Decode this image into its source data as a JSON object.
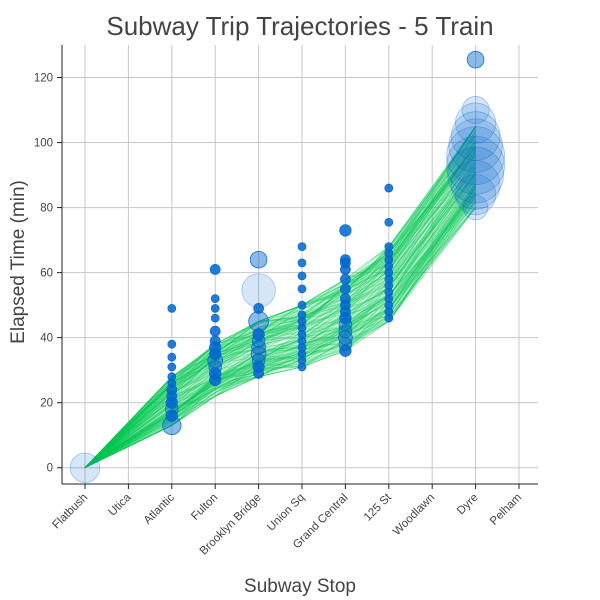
{
  "chart_data": {
    "type": "scatter",
    "title": "Subway Trip Trajectories - 5 Train",
    "xlabel": "Subway Stop",
    "ylabel": "Elapsed Time (min)",
    "categories": [
      "Flatbush",
      "Utica",
      "Atlantic",
      "Fulton",
      "Brooklyn Bridge",
      "Union Sq",
      "Grand Central",
      "125 St",
      "Woodlawn",
      "Dyre",
      "Pelham"
    ],
    "ylim": [
      -5,
      130
    ],
    "yticks": [
      0,
      20,
      40,
      60,
      80,
      100,
      120
    ],
    "grid": true,
    "legend": "none",
    "colors": {
      "trajectory_line": "#00c853",
      "point": "#0066cc",
      "text": "#444444",
      "grid": "#c8c8c8"
    },
    "trajectory_series": {
      "description_count": 260,
      "typical_times_by_stop": {
        "Flatbush": 0,
        "Atlantic": [
          13,
          28
        ],
        "Fulton": [
          22,
          38
        ],
        "Brooklyn Bridge": [
          28,
          45
        ],
        "Union Sq": [
          31,
          50
        ],
        "Grand Central": [
          36,
          58
        ],
        "125 St": [
          45,
          68
        ],
        "Dyre": [
          80,
          105
        ]
      }
    },
    "points": [
      {
        "stop": "Flatbush",
        "y": 0,
        "count": 30
      },
      {
        "stop": "Atlantic",
        "y": 13,
        "count": 10
      },
      {
        "stop": "Atlantic",
        "y": 16,
        "count": 3
      },
      {
        "stop": "Atlantic",
        "y": 18,
        "count": 4
      },
      {
        "stop": "Atlantic",
        "y": 20,
        "count": 3
      },
      {
        "stop": "Atlantic",
        "y": 22,
        "count": 2
      },
      {
        "stop": "Atlantic",
        "y": 24,
        "count": 2
      },
      {
        "stop": "Atlantic",
        "y": 26,
        "count": 1
      },
      {
        "stop": "Atlantic",
        "y": 28,
        "count": 1
      },
      {
        "stop": "Atlantic",
        "y": 31,
        "count": 1
      },
      {
        "stop": "Atlantic",
        "y": 34,
        "count": 1
      },
      {
        "stop": "Atlantic",
        "y": 38,
        "count": 1
      },
      {
        "stop": "Atlantic",
        "y": 49,
        "count": 1
      },
      {
        "stop": "Fulton",
        "y": 27,
        "count": 3
      },
      {
        "stop": "Fulton",
        "y": 29,
        "count": 3
      },
      {
        "stop": "Fulton",
        "y": 31,
        "count": 4
      },
      {
        "stop": "Fulton",
        "y": 33,
        "count": 6
      },
      {
        "stop": "Fulton",
        "y": 35,
        "count": 3
      },
      {
        "stop": "Fulton",
        "y": 37,
        "count": 3
      },
      {
        "stop": "Fulton",
        "y": 39,
        "count": 2
      },
      {
        "stop": "Fulton",
        "y": 42,
        "count": 2
      },
      {
        "stop": "Fulton",
        "y": 46,
        "count": 1
      },
      {
        "stop": "Fulton",
        "y": 49,
        "count": 1
      },
      {
        "stop": "Fulton",
        "y": 52,
        "count": 1
      },
      {
        "stop": "Fulton",
        "y": 61,
        "count": 2
      },
      {
        "stop": "Brooklyn Bridge",
        "y": 29,
        "count": 2
      },
      {
        "stop": "Brooklyn Bridge",
        "y": 31,
        "count": 3
      },
      {
        "stop": "Brooklyn Bridge",
        "y": 33,
        "count": 4
      },
      {
        "stop": "Brooklyn Bridge",
        "y": 35,
        "count": 6
      },
      {
        "stop": "Brooklyn Bridge",
        "y": 37,
        "count": 5
      },
      {
        "stop": "Brooklyn Bridge",
        "y": 39,
        "count": 4
      },
      {
        "stop": "Brooklyn Bridge",
        "y": 41,
        "count": 3
      },
      {
        "stop": "Brooklyn Bridge",
        "y": 45,
        "count": 12
      },
      {
        "stop": "Brooklyn Bridge",
        "y": 49,
        "count": 2
      },
      {
        "stop": "Brooklyn Bridge",
        "y": 54.5,
        "count": 40
      },
      {
        "stop": "Brooklyn Bridge",
        "y": 64,
        "count": 8
      },
      {
        "stop": "Union Sq",
        "y": 31,
        "count": 1
      },
      {
        "stop": "Union Sq",
        "y": 33,
        "count": 1
      },
      {
        "stop": "Union Sq",
        "y": 35,
        "count": 1
      },
      {
        "stop": "Union Sq",
        "y": 37,
        "count": 1
      },
      {
        "stop": "Union Sq",
        "y": 39,
        "count": 1
      },
      {
        "stop": "Union Sq",
        "y": 41,
        "count": 1
      },
      {
        "stop": "Union Sq",
        "y": 43,
        "count": 1
      },
      {
        "stop": "Union Sq",
        "y": 45,
        "count": 1
      },
      {
        "stop": "Union Sq",
        "y": 47,
        "count": 1
      },
      {
        "stop": "Union Sq",
        "y": 50,
        "count": 1
      },
      {
        "stop": "Union Sq",
        "y": 55,
        "count": 1
      },
      {
        "stop": "Union Sq",
        "y": 59,
        "count": 1
      },
      {
        "stop": "Union Sq",
        "y": 63,
        "count": 1
      },
      {
        "stop": "Union Sq",
        "y": 68,
        "count": 1
      },
      {
        "stop": "Grand Central",
        "y": 36,
        "count": 3
      },
      {
        "stop": "Grand Central",
        "y": 38,
        "count": 4
      },
      {
        "stop": "Grand Central",
        "y": 40,
        "count": 5
      },
      {
        "stop": "Grand Central",
        "y": 42,
        "count": 4
      },
      {
        "stop": "Grand Central",
        "y": 44,
        "count": 4
      },
      {
        "stop": "Grand Central",
        "y": 46,
        "count": 3
      },
      {
        "stop": "Grand Central",
        "y": 48,
        "count": 2
      },
      {
        "stop": "Grand Central",
        "y": 50,
        "count": 2
      },
      {
        "stop": "Grand Central",
        "y": 52,
        "count": 2
      },
      {
        "stop": "Grand Central",
        "y": 55,
        "count": 2
      },
      {
        "stop": "Grand Central",
        "y": 58,
        "count": 2
      },
      {
        "stop": "Grand Central",
        "y": 61,
        "count": 2
      },
      {
        "stop": "Grand Central",
        "y": 63,
        "count": 2
      },
      {
        "stop": "Grand Central",
        "y": 64,
        "count": 2
      },
      {
        "stop": "Grand Central",
        "y": 73,
        "count": 3
      },
      {
        "stop": "125 St",
        "y": 46,
        "count": 1
      },
      {
        "stop": "125 St",
        "y": 48,
        "count": 1
      },
      {
        "stop": "125 St",
        "y": 50,
        "count": 1
      },
      {
        "stop": "125 St",
        "y": 52,
        "count": 1
      },
      {
        "stop": "125 St",
        "y": 54,
        "count": 1
      },
      {
        "stop": "125 St",
        "y": 56,
        "count": 1
      },
      {
        "stop": "125 St",
        "y": 58,
        "count": 1
      },
      {
        "stop": "125 St",
        "y": 60,
        "count": 1
      },
      {
        "stop": "125 St",
        "y": 62,
        "count": 1
      },
      {
        "stop": "125 St",
        "y": 64,
        "count": 1
      },
      {
        "stop": "125 St",
        "y": 66,
        "count": 1
      },
      {
        "stop": "125 St",
        "y": 68,
        "count": 1
      },
      {
        "stop": "125 St",
        "y": 75.5,
        "count": 1
      },
      {
        "stop": "125 St",
        "y": 86,
        "count": 1
      },
      {
        "stop": "Dyre",
        "y": 80,
        "count": 20
      },
      {
        "stop": "Dyre",
        "y": 84,
        "count": 60
      },
      {
        "stop": "Dyre",
        "y": 87,
        "count": 90
      },
      {
        "stop": "Dyre",
        "y": 90,
        "count": 120
      },
      {
        "stop": "Dyre",
        "y": 93,
        "count": 130
      },
      {
        "stop": "Dyre",
        "y": 96,
        "count": 130
      },
      {
        "stop": "Dyre",
        "y": 99,
        "count": 110
      },
      {
        "stop": "Dyre",
        "y": 102,
        "count": 90
      },
      {
        "stop": "Dyre",
        "y": 106,
        "count": 60
      },
      {
        "stop": "Dyre",
        "y": 110,
        "count": 25
      },
      {
        "stop": "Dyre",
        "y": 125.5,
        "count": 8
      }
    ]
  }
}
